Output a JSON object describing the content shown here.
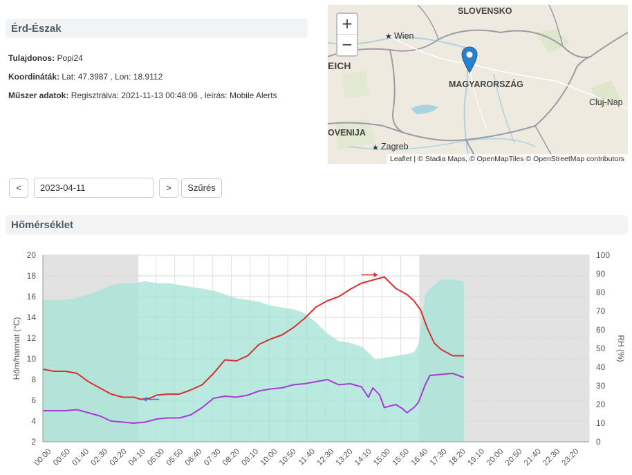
{
  "station": {
    "title": "Érd-Észak",
    "owner_label": "Tulajdonos:",
    "owner": "Popi24",
    "coords_label": "Koordináták:",
    "coords": "Lat: 47.3987 , Lon: 18.9112",
    "device_label": "Műszer adatok:",
    "device": "Regisztrálva: 2021-11-13 00:48:06 , leírás: Mobile Alerts"
  },
  "map": {
    "zoom_in": "+",
    "zoom_out": "−",
    "labels": {
      "slovensko": "SLOVENSKO",
      "wien": "Wien",
      "eich": "EICH",
      "magyarorszag": "MAGYARORSZÁG",
      "cluj": "Cluj-Nap",
      "slovenija": "OVENIJA",
      "zagreb": "Zagreb"
    },
    "attribution": {
      "leaflet": "Leaflet",
      "sep": " | © ",
      "stadia": "Stadia Maps",
      "omt_prefix": ", © ",
      "omt": "OpenMapTiles",
      "osm_prefix": " © ",
      "osm": "OpenStreetMap contributors"
    },
    "colors": {
      "land": "#efeae0",
      "water": "#aad3df",
      "border": "#9b9aa5",
      "marker": "#2a81cb"
    }
  },
  "controls": {
    "prev": "<",
    "date": "2023-04-11",
    "next": ">",
    "filter": "Szűrés"
  },
  "section": {
    "title": "Hőmérséklet"
  },
  "chart_data": {
    "type": "line",
    "ylabel": "Hőm/harmat (°C)",
    "y2label": "RH (%)",
    "ylim": [
      2,
      20
    ],
    "y_ticks": [
      2,
      4,
      6,
      8,
      10,
      12,
      14,
      16,
      18,
      20
    ],
    "y2lim": [
      0,
      100
    ],
    "y2_ticks": [
      0,
      10,
      20,
      30,
      40,
      50,
      60,
      70,
      80,
      90,
      100
    ],
    "x_ticks": [
      "00:00",
      "00:50",
      "01:40",
      "02:30",
      "03:20",
      "04:10",
      "05:00",
      "05:50",
      "06:40",
      "07:30",
      "08:20",
      "09:10",
      "10:00",
      "10:50",
      "11:40",
      "12:30",
      "13:20",
      "14:10",
      "15:00",
      "15:50",
      "16:40",
      "17:30",
      "18:20",
      "19:10",
      "20:00",
      "20:50",
      "21:40",
      "22:30",
      "23:20"
    ],
    "x_range_hours": [
      0,
      24
    ],
    "night_bands_hours": [
      [
        0,
        4.2
      ],
      [
        16.55,
        24
      ]
    ],
    "colors": {
      "temperature": "#d62f2f",
      "dewpoint": "#a83ad6",
      "humidity_fill": "#a6e3d7",
      "night": "#e2e2e2",
      "min_marker": "#3a7bd5",
      "max_marker": "#d62f2f"
    },
    "min_marker": {
      "x": 4.5,
      "y": 6.1
    },
    "max_marker": {
      "x": 14.6,
      "y": 18.1
    },
    "series": [
      {
        "name": "Hőmérséklet",
        "axis": "left",
        "x": [
          0,
          0.5,
          1,
          1.5,
          2,
          2.5,
          3,
          3.5,
          4,
          4.3,
          4.7,
          5,
          5.5,
          6,
          6.5,
          7,
          7.5,
          8,
          8.5,
          9,
          9.5,
          10,
          10.5,
          11,
          11.5,
          12,
          12.5,
          13,
          13.5,
          14,
          14.5,
          15,
          15.5,
          16,
          16.3,
          16.6,
          16.9,
          17.2,
          17.5,
          18,
          18.5
        ],
        "values": [
          9.0,
          8.8,
          8.8,
          8.6,
          7.8,
          7.2,
          6.6,
          6.3,
          6.3,
          6.1,
          6.2,
          6.5,
          6.6,
          6.6,
          7.0,
          7.5,
          8.6,
          9.9,
          9.8,
          10.3,
          11.4,
          11.9,
          12.3,
          13.0,
          13.9,
          15.0,
          15.6,
          16.0,
          16.7,
          17.3,
          17.6,
          17.9,
          16.8,
          16.2,
          15.6,
          14.7,
          12.9,
          11.5,
          10.9,
          10.3,
          10.3
        ]
      },
      {
        "name": "Harmatpont",
        "axis": "left",
        "x": [
          0,
          0.5,
          1,
          1.5,
          2,
          2.5,
          3,
          3.5,
          4,
          4.5,
          5,
          5.5,
          6,
          6.5,
          7,
          7.5,
          8,
          8.5,
          9,
          9.5,
          10,
          10.5,
          11,
          11.5,
          12,
          12.5,
          13,
          13.5,
          14,
          14.3,
          14.5,
          14.8,
          15,
          15.5,
          15.8,
          16,
          16.3,
          16.5,
          16.8,
          17,
          17.5,
          18,
          18.5
        ],
        "values": [
          5.0,
          5.0,
          5.0,
          5.1,
          4.8,
          4.5,
          4.0,
          3.9,
          3.8,
          3.9,
          4.2,
          4.3,
          4.3,
          4.6,
          5.3,
          6.2,
          6.4,
          6.3,
          6.5,
          6.9,
          7.1,
          7.2,
          7.5,
          7.6,
          7.8,
          8.0,
          7.5,
          7.6,
          7.3,
          6.3,
          7.2,
          6.5,
          5.3,
          5.6,
          5.2,
          4.8,
          5.3,
          5.8,
          7.5,
          8.4,
          8.5,
          8.6,
          8.2
        ]
      },
      {
        "name": "RH",
        "axis": "right",
        "x": [
          0,
          0.5,
          1,
          1.5,
          2,
          2.5,
          3,
          3.5,
          4,
          4.5,
          5,
          5.5,
          6,
          6.5,
          7,
          7.5,
          8,
          8.5,
          9,
          9.5,
          10,
          10.5,
          11,
          11.5,
          12,
          12.5,
          13,
          13.5,
          14,
          14.3,
          14.6,
          15,
          15.5,
          16,
          16.3,
          16.5,
          16.8,
          17,
          17.5,
          18,
          18.5
        ],
        "values": [
          76,
          76,
          76,
          77,
          79,
          81,
          84,
          85,
          85,
          86,
          85,
          85,
          84,
          83,
          82,
          81,
          79,
          77,
          76,
          75,
          73,
          72,
          71,
          69,
          64,
          58,
          54,
          53,
          51,
          48,
          44,
          45,
          46,
          47,
          48,
          52,
          79,
          82,
          87,
          87,
          86
        ]
      }
    ]
  }
}
